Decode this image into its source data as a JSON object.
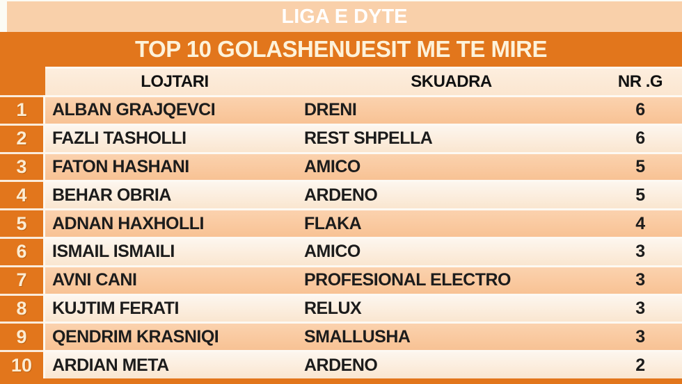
{
  "header": {
    "league_title": "LIGA E DYTE",
    "table_title": "TOP 10 GOLASHENUESIT ME TE MIRE"
  },
  "colors": {
    "frame_orange": "#e2761c",
    "top_bar_peach": "#f9d0aa",
    "odd_row_peach": "#f9c9a1",
    "even_row_cream": "#fdf2e4",
    "header_row_cream": "#fcebdb",
    "title_text": "#ffffff",
    "rank_text": "#fcecd2",
    "data_text": "#1c1c1c"
  },
  "chart_data": {
    "type": "table",
    "title": "LIGA E DYTE",
    "subtitle": "TOP 10 GOLASHENUESIT ME TE MIRE",
    "columns": [
      "LOJTARI",
      "SKUADRA",
      "NR .G"
    ],
    "rows": [
      {
        "rank": "1",
        "player": "ALBAN GRAJQEVCI",
        "team": "DRENI",
        "goals": "6"
      },
      {
        "rank": "2",
        "player": "FAZLI TASHOLLI",
        "team": "REST SHPELLA",
        "goals": "6"
      },
      {
        "rank": "3",
        "player": "FATON HASHANI",
        "team": "AMICO",
        "goals": "5"
      },
      {
        "rank": "4",
        "player": "BEHAR OBRIA",
        "team": "ARDENO",
        "goals": "5"
      },
      {
        "rank": "5",
        "player": "ADNAN HAXHOLLI",
        "team": "FLAKA",
        "goals": "4"
      },
      {
        "rank": "6",
        "player": "ISMAIL ISMAILI",
        "team": "AMICO",
        "goals": "3"
      },
      {
        "rank": "7",
        "player": "AVNI CANI",
        "team": "PROFESIONAL ELECTRO",
        "goals": "3"
      },
      {
        "rank": "8",
        "player": "KUJTIM FERATI",
        "team": "RELUX",
        "goals": "3"
      },
      {
        "rank": "9",
        "player": "QENDRIM KRASNIQI",
        "team": "SMALLUSHA",
        "goals": "3"
      },
      {
        "rank": "10",
        "player": "ARDIAN META",
        "team": "ARDENO",
        "goals": "2"
      }
    ]
  }
}
